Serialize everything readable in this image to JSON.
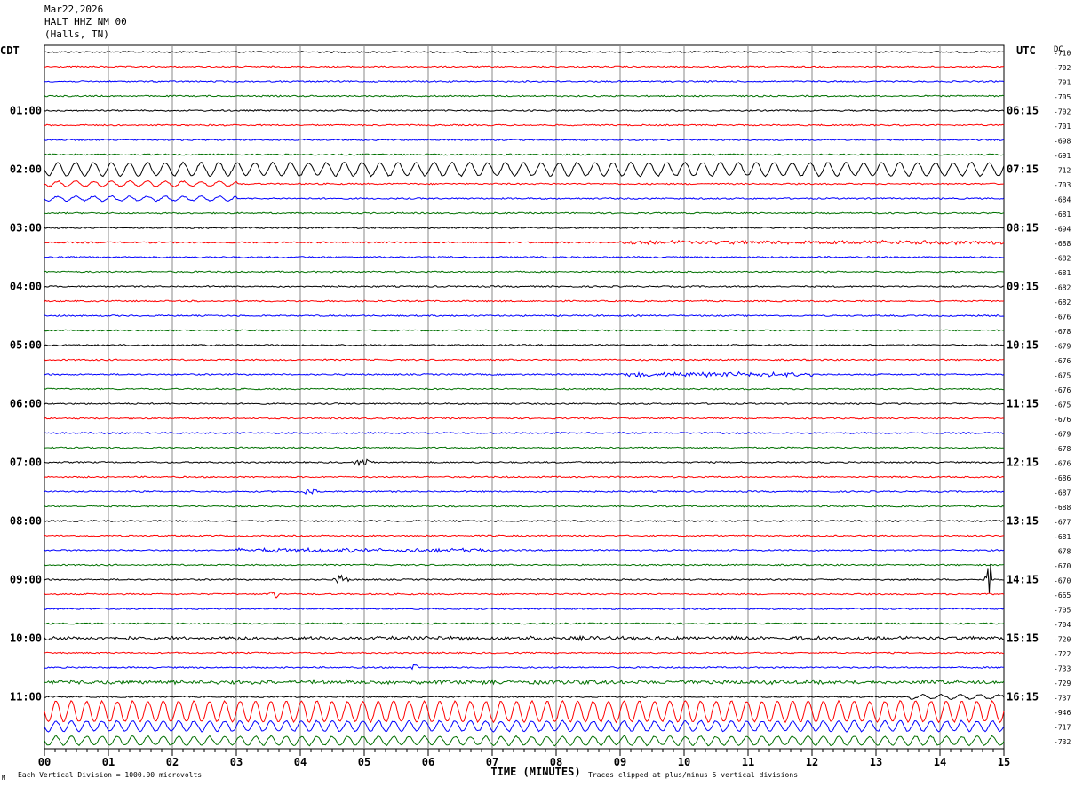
{
  "header": {
    "date": "Mar22,2026",
    "station": "HALT HHZ NM 00",
    "location": "(Halls, TN)"
  },
  "axis_labels": {
    "left_timezone": "CDT",
    "right_timezone": "UTC",
    "dc_label": "DC",
    "xlabel": "TIME (MINUTES)"
  },
  "footer": {
    "left_note": "Each Vertical Division = 1000.00 microvolts",
    "right_note": "Traces clipped at plus/minus 5 vertical divisions",
    "corner_mark": "M"
  },
  "colors": {
    "trace_cycle": [
      "#000000",
      "#ff0000",
      "#0000ff",
      "#007000"
    ],
    "grid": "#888888"
  },
  "chart_data": {
    "type": "line",
    "title": "",
    "x_ticks": [
      "00",
      "01",
      "02",
      "03",
      "04",
      "05",
      "06",
      "07",
      "08",
      "09",
      "10",
      "11",
      "12",
      "13",
      "14",
      "15"
    ],
    "x_range": [
      0,
      15
    ],
    "trace_minutes": 15,
    "left_hour_labels": [
      "01:00",
      "02:00",
      "03:00",
      "04:00",
      "05:00",
      "06:00",
      "07:00",
      "08:00",
      "09:00",
      "10:00",
      "11:00"
    ],
    "right_hour_labels": [
      "06:15",
      "07:15",
      "08:15",
      "09:15",
      "10:15",
      "11:15",
      "12:15",
      "13:15",
      "14:15",
      "15:15",
      "16:15"
    ],
    "dc_offsets": [
      "-710",
      "-702",
      "-701",
      "-705",
      "-702",
      "-701",
      "-698",
      "-691",
      "-712",
      "-703",
      "-684",
      "-681",
      "-694",
      "-688",
      "-682",
      "-681",
      "-682",
      "-682",
      "-676",
      "-678",
      "-679",
      "-676",
      "-675",
      "-676",
      "-675",
      "-676",
      "-679",
      "-678",
      "-676",
      "-686",
      "-687",
      "-688",
      "-677",
      "-681",
      "-678",
      "-670",
      "-670",
      "-665",
      "-705",
      "-704",
      "-720",
      "-722",
      "-733",
      "-729",
      "-737",
      "-946",
      "-717",
      "-732"
    ],
    "events": [
      {
        "trace": 8,
        "from": 0,
        "to": 15,
        "type": "sinusoid",
        "amp": 0.9,
        "period": 0.28
      },
      {
        "trace": 9,
        "from": 0,
        "to": 3,
        "type": "sinusoid",
        "amp": 0.35,
        "period": 0.28
      },
      {
        "trace": 10,
        "from": 0,
        "to": 3,
        "type": "sinusoid",
        "amp": 0.3,
        "period": 0.28
      },
      {
        "trace": 13,
        "from": 9,
        "to": 15,
        "type": "noise",
        "amp": 0.45
      },
      {
        "trace": 22,
        "from": 9,
        "to": 12,
        "type": "noise",
        "amp": 0.5
      },
      {
        "trace": 28,
        "from": 4.8,
        "to": 5.2,
        "type": "burst",
        "amp": 0.6
      },
      {
        "trace": 30,
        "from": 4.0,
        "to": 4.3,
        "type": "burst",
        "amp": 0.6
      },
      {
        "trace": 34,
        "from": 3.0,
        "to": 7.0,
        "type": "noise",
        "amp": 0.45
      },
      {
        "trace": 36,
        "from": 4.5,
        "to": 4.8,
        "type": "burst",
        "amp": 0.7
      },
      {
        "trace": 36,
        "from": 14.7,
        "to": 14.8,
        "type": "spike",
        "amp": 2.5
      },
      {
        "trace": 37,
        "from": 3.5,
        "to": 3.7,
        "type": "burst",
        "amp": 0.8
      },
      {
        "trace": 40,
        "from": 0,
        "to": 15,
        "type": "noise",
        "amp": 0.4
      },
      {
        "trace": 42,
        "from": 5.7,
        "to": 5.9,
        "type": "burst",
        "amp": 0.6
      },
      {
        "trace": 43,
        "from": 0,
        "to": 15,
        "type": "noise",
        "amp": 0.45
      },
      {
        "trace": 44,
        "from": 13.5,
        "to": 15,
        "type": "sinusoid",
        "amp": 0.3,
        "period": 0.3
      },
      {
        "trace": 45,
        "from": 0,
        "to": 15,
        "type": "sinusoid",
        "amp": 1.4,
        "period": 0.24
      },
      {
        "trace": 46,
        "from": 0,
        "to": 15,
        "type": "sinusoid",
        "amp": 0.7,
        "period": 0.24
      },
      {
        "trace": 47,
        "from": 0,
        "to": 15,
        "type": "sinusoid",
        "amp": 0.6,
        "period": 0.24
      }
    ]
  }
}
